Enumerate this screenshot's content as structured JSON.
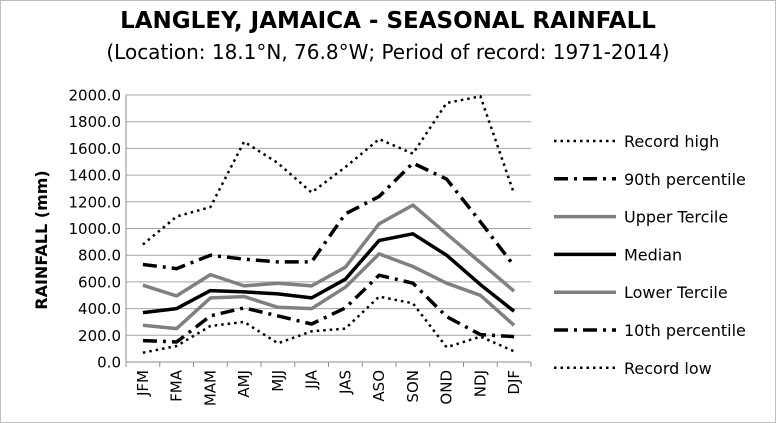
{
  "chart_data": {
    "type": "line",
    "title": "LANGLEY, JAMAICA - SEASONAL RAINFALL",
    "subtitle": "(Location: 18.1°N, 76.8°W; Period of record: 1971-2014)",
    "xlabel": "",
    "ylabel": "RAINFALL (mm)",
    "ylim": [
      0,
      2000
    ],
    "yticks": [
      "0.0",
      "200.0",
      "400.0",
      "600.0",
      "800.0",
      "1000.0",
      "1200.0",
      "1400.0",
      "1600.0",
      "1800.0",
      "2000.0"
    ],
    "grid": true,
    "legend_position": "right",
    "categories": [
      "JFM",
      "FMA",
      "MAM",
      "AMJ",
      "MJJ",
      "JJA",
      "JAS",
      "ASO",
      "SON",
      "OND",
      "NDJ",
      "DJF"
    ],
    "series": [
      {
        "name": "Record high",
        "values": [
          880,
          1090,
          1160,
          1650,
          1490,
          1270,
          1460,
          1670,
          1560,
          1940,
          1990,
          1260
        ],
        "color": "#000000",
        "style": "dotted"
      },
      {
        "name": "90th percentile",
        "values": [
          730,
          700,
          800,
          770,
          750,
          750,
          1110,
          1240,
          1490,
          1370,
          1050,
          720
        ],
        "color": "#000000",
        "style": "dashdot"
      },
      {
        "name": "Upper Tercile",
        "values": [
          575,
          495,
          655,
          570,
          590,
          570,
          710,
          1035,
          1175,
          960,
          745,
          530
        ],
        "color": "#808080",
        "style": "solid"
      },
      {
        "name": "Median",
        "values": [
          370,
          400,
          535,
          525,
          510,
          480,
          620,
          910,
          960,
          800,
          580,
          380
        ],
        "color": "#000000",
        "style": "solid"
      },
      {
        "name": "Lower Tercile",
        "values": [
          275,
          250,
          480,
          490,
          410,
          400,
          560,
          810,
          715,
          590,
          500,
          275
        ],
        "color": "#808080",
        "style": "solid"
      },
      {
        "name": "10th percentile",
        "values": [
          160,
          150,
          345,
          405,
          345,
          285,
          405,
          650,
          590,
          340,
          205,
          190
        ],
        "color": "#000000",
        "style": "dashdot"
      },
      {
        "name": "Record low",
        "values": [
          70,
          120,
          270,
          300,
          140,
          230,
          250,
          490,
          440,
          110,
          190,
          80
        ],
        "color": "#000000",
        "style": "dotted"
      }
    ]
  }
}
